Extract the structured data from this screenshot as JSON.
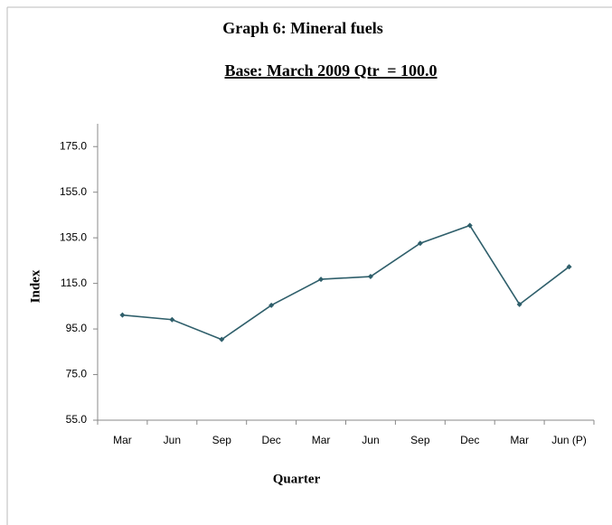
{
  "chart_data": {
    "type": "line",
    "title": "Graph 6: Mineral fuels",
    "subtitle": "Base: March 2009 Qtr  = 100.0",
    "x_label": "Quarter",
    "y_label": "Index",
    "categories": [
      "Mar",
      "Jun",
      "Sep",
      "Dec",
      "Mar",
      "Jun",
      "Sep",
      "Dec",
      "Mar",
      "Jun (P)"
    ],
    "series": [
      {
        "name": "Mineral fuels",
        "color": "#2f5f6b",
        "values": [
          101.1,
          99.1,
          90.4,
          105.4,
          116.8,
          118.0,
          132.6,
          140.4,
          105.8,
          122.3
        ]
      }
    ],
    "ylim": [
      55,
      185
    ],
    "yticks": [
      {
        "value": 55,
        "label": "55.0"
      },
      {
        "value": 75,
        "label": "75.0"
      },
      {
        "value": 95,
        "label": "95.0"
      },
      {
        "value": 115,
        "label": "115.0"
      },
      {
        "value": 135,
        "label": "135.0"
      },
      {
        "value": 155,
        "label": "155.0"
      },
      {
        "value": 175,
        "label": "175.0"
      }
    ],
    "grid": false
  }
}
